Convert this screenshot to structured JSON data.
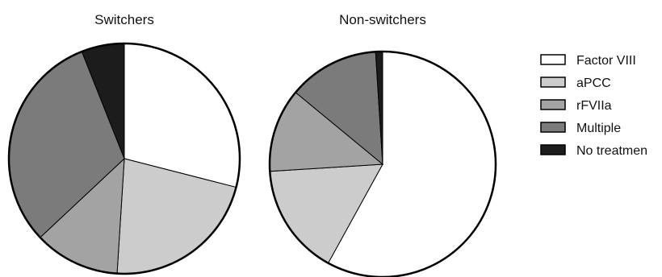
{
  "chart_data": [
    {
      "type": "pie",
      "title": "Switchers",
      "categories": [
        "Factor VIII",
        "aPCC",
        "rFVIIa",
        "Multiple",
        "No treatmen"
      ],
      "values": [
        29,
        22,
        12,
        31,
        6
      ],
      "start_angle_deg": 0,
      "direction": "clockwise"
    },
    {
      "type": "pie",
      "title": "Non-switchers",
      "categories": [
        "Factor VIII",
        "aPCC",
        "rFVIIa",
        "Multiple",
        "No treatmen"
      ],
      "values": [
        58,
        16,
        12,
        13,
        1
      ],
      "start_angle_deg": 0,
      "direction": "clockwise"
    }
  ],
  "legend": {
    "placement": "right",
    "items": [
      {
        "label": "Factor VIII",
        "color": "#ffffff"
      },
      {
        "label": "aPCC",
        "color": "#cccccc"
      },
      {
        "label": "rFVIIa",
        "color": "#a3a3a3"
      },
      {
        "label": "Multiple",
        "color": "#7b7b7b"
      },
      {
        "label": "No treatmen",
        "color": "#1c1c1c"
      }
    ]
  }
}
